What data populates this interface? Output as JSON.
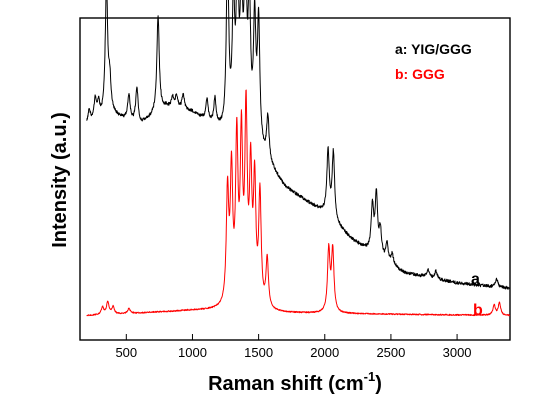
{
  "chart_data": {
    "type": "line",
    "xlabel_main": "Raman shift (cm",
    "xlabel_sup": "-1",
    "xlabel_end": ")",
    "ylabel": "Intensity (a.u.)",
    "xlim": [
      150,
      3400
    ],
    "xticks": [
      500,
      1000,
      1500,
      2000,
      2500,
      3000
    ],
    "legend": {
      "position": "top-right",
      "entries": [
        "a: YIG/GGG",
        "b: GGG"
      ]
    },
    "series": [
      {
        "name": "a: YIG/GGG",
        "label": "a",
        "color": "#000000",
        "baseline": [
          [
            200,
            0.66
          ],
          [
            400,
            0.7
          ],
          [
            600,
            0.66
          ],
          [
            800,
            0.73
          ],
          [
            1000,
            0.71
          ],
          [
            1250,
            0.62
          ],
          [
            1500,
            0.56
          ],
          [
            1700,
            0.42
          ],
          [
            2000,
            0.32
          ],
          [
            2200,
            0.22
          ],
          [
            2400,
            0.15
          ],
          [
            2600,
            0.09
          ],
          [
            3000,
            0.05
          ],
          [
            3400,
            0.03
          ]
        ],
        "peaks": [
          [
            220,
            0.05
          ],
          [
            265,
            0.08
          ],
          [
            290,
            0.06
          ],
          [
            350,
            0.5
          ],
          [
            375,
            0.12
          ],
          [
            520,
            0.1
          ],
          [
            580,
            0.14
          ],
          [
            740,
            0.37
          ],
          [
            850,
            0.04
          ],
          [
            880,
            0.05
          ],
          [
            930,
            0.06
          ],
          [
            1110,
            0.08
          ],
          [
            1170,
            0.1
          ],
          [
            1265,
            0.67
          ],
          [
            1310,
            0.48
          ],
          [
            1340,
            0.6
          ],
          [
            1370,
            0.52
          ],
          [
            1400,
            0.68
          ],
          [
            1430,
            0.52
          ],
          [
            1470,
            0.46
          ],
          [
            1500,
            0.47
          ],
          [
            1570,
            0.17
          ],
          [
            2025,
            0.25
          ],
          [
            2065,
            0.26
          ],
          [
            2360,
            0.18
          ],
          [
            2390,
            0.23
          ],
          [
            2420,
            0.1
          ],
          [
            2470,
            0.07
          ],
          [
            2510,
            0.04
          ],
          [
            2780,
            0.03
          ],
          [
            2840,
            0.03
          ],
          [
            3300,
            0.03
          ]
        ]
      },
      {
        "name": "b: GGG",
        "label": "b",
        "color": "#ff0000",
        "baseline": [
          [
            200,
            0.01
          ],
          [
            1000,
            0.03
          ],
          [
            1250,
            0.03
          ],
          [
            1600,
            0.02
          ],
          [
            3400,
            0.01
          ]
        ],
        "peaks": [
          [
            320,
            0.03
          ],
          [
            360,
            0.05
          ],
          [
            400,
            0.03
          ],
          [
            520,
            0.02
          ],
          [
            1265,
            0.45
          ],
          [
            1295,
            0.52
          ],
          [
            1335,
            0.65
          ],
          [
            1370,
            0.65
          ],
          [
            1405,
            0.75
          ],
          [
            1440,
            0.52
          ],
          [
            1470,
            0.48
          ],
          [
            1510,
            0.45
          ],
          [
            1565,
            0.2
          ],
          [
            2030,
            0.25
          ],
          [
            2060,
            0.25
          ],
          [
            3280,
            0.04
          ],
          [
            3320,
            0.05
          ]
        ]
      }
    ]
  }
}
